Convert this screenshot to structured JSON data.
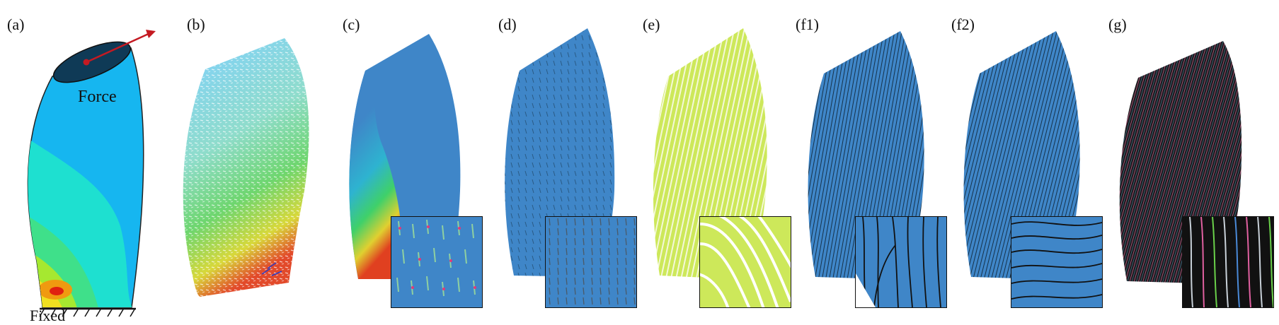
{
  "panels": [
    {
      "label": "(a)"
    },
    {
      "label": "(b)"
    },
    {
      "label": "(c)"
    },
    {
      "label": "(d)"
    },
    {
      "label": "(e)"
    },
    {
      "label": "(f1)"
    },
    {
      "label": "(f2)"
    },
    {
      "label": "(g)"
    }
  ],
  "annotations": {
    "force": "Force",
    "fixed": "Fixed"
  },
  "colors": {
    "blue_shell": "#3f86c8",
    "cyan_field": "#16b6f0",
    "yellow_green": "#cde85a",
    "arrow_red": "#c41a22",
    "dark_bg": "#1a1a1a"
  }
}
